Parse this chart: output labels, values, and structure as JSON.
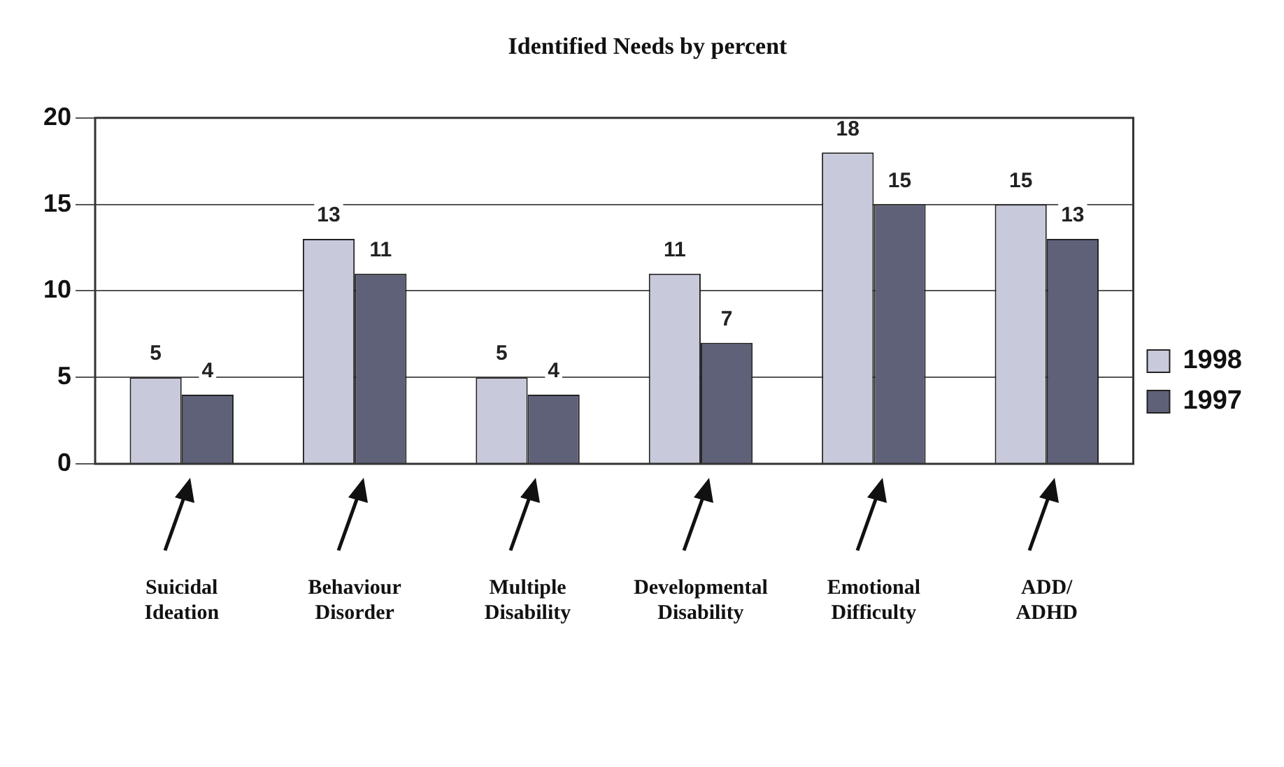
{
  "chart_data": {
    "type": "bar",
    "title": "Identified Needs by percent",
    "categories": [
      "Suicidal Ideation",
      "Behaviour Disorder",
      "Multiple Disability",
      "Developmental Disability",
      "Emotional Difficulty",
      "ADD/ ADHD"
    ],
    "series": [
      {
        "name": "1998",
        "color": "#c8cadb",
        "values": [
          5,
          13,
          5,
          11,
          18,
          15
        ]
      },
      {
        "name": "1997",
        "color": "#5e6178",
        "values": [
          4,
          11,
          4,
          7,
          15,
          13
        ]
      }
    ],
    "ylim": [
      0,
      20
    ],
    "yticks": [
      0,
      5,
      10,
      15,
      20
    ],
    "grid": "y",
    "legend": "right",
    "data_labels": true
  }
}
